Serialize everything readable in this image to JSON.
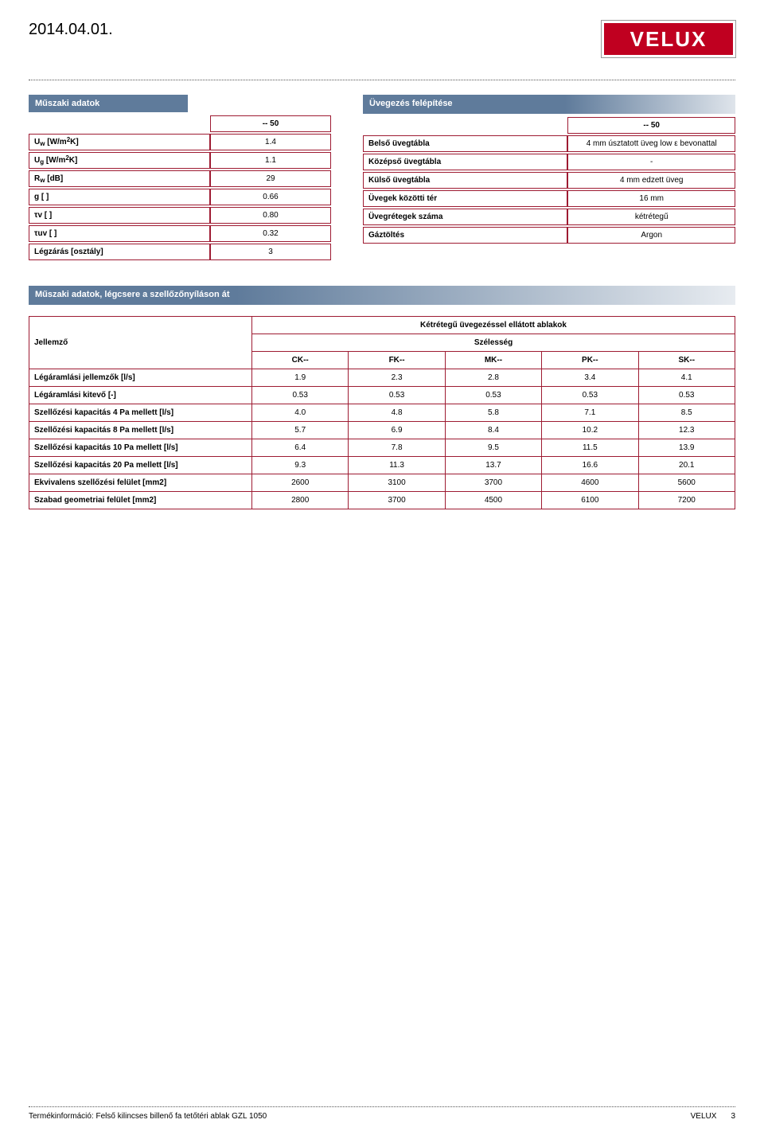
{
  "header": {
    "date": "2014.04.01.",
    "logo_text": "VELUX"
  },
  "colors": {
    "brand_red": "#c00020",
    "section_blue": "#5f7b9b",
    "border_red": "#9e1b32"
  },
  "sections": {
    "tech_data_title": "Műszaki adatok",
    "glazing_title": "Üvegezés felépítése"
  },
  "tech_table": {
    "col_header": "-- 50",
    "rows": [
      {
        "label_html": "U<sub>w</sub> [W/m<sup>2</sup>K]",
        "value": "1.4"
      },
      {
        "label_html": "U<sub>g</sub> [W/m<sup>2</sup>K]",
        "value": "1.1"
      },
      {
        "label_html": "R<sub>w</sub> [dB]",
        "value": "29"
      },
      {
        "label_html": "g [ ]",
        "value": "0.66"
      },
      {
        "label_html": "τv [ ]",
        "value": "0.80"
      },
      {
        "label_html": "τuv [ ]",
        "value": "0.32"
      },
      {
        "label_html": "Légzárás [osztály]",
        "value": "3"
      }
    ]
  },
  "glazing_table": {
    "col_header": "-- 50",
    "rows": [
      {
        "label": "Belső üvegtábla",
        "value": "4 mm úsztatott üveg low ε bevonattal"
      },
      {
        "label": "Középső üvegtábla",
        "value": "-"
      },
      {
        "label": "Külső üvegtábla",
        "value": "4 mm edzett üveg"
      },
      {
        "label": "Üvegek közötti tér",
        "value": "16 mm"
      },
      {
        "label": "Üvegrétegek száma",
        "value": "kétrétegű"
      },
      {
        "label": "Gáztöltés",
        "value": "Argon"
      }
    ]
  },
  "air_section": {
    "title": "Műszaki adatok, légcsere a szellőzőnyíláson át",
    "super_header": "Kétrétegű üvegezéssel ellátott ablakok",
    "row_header": "Jellemző",
    "width_header": "Szélesség",
    "columns": [
      "CK--",
      "FK--",
      "MK--",
      "PK--",
      "SK--"
    ],
    "rows": [
      {
        "label": "Légáramlási jellemzők [l/s]",
        "values": [
          "1.9",
          "2.3",
          "2.8",
          "3.4",
          "4.1"
        ]
      },
      {
        "label": "Légáramlási kitevő [-]",
        "values": [
          "0.53",
          "0.53",
          "0.53",
          "0.53",
          "0.53"
        ]
      },
      {
        "label": "Szellőzési kapacitás 4 Pa mellett [l/s]",
        "values": [
          "4.0",
          "4.8",
          "5.8",
          "7.1",
          "8.5"
        ]
      },
      {
        "label": "Szellőzési kapacitás 8 Pa mellett [l/s]",
        "values": [
          "5.7",
          "6.9",
          "8.4",
          "10.2",
          "12.3"
        ]
      },
      {
        "label": "Szellőzési kapacitás 10 Pa mellett [l/s]",
        "values": [
          "6.4",
          "7.8",
          "9.5",
          "11.5",
          "13.9"
        ]
      },
      {
        "label": "Szellőzési kapacitás 20 Pa mellett [l/s]",
        "values": [
          "9.3",
          "11.3",
          "13.7",
          "16.6",
          "20.1"
        ]
      },
      {
        "label": "Ekvivalens szellőzési felület [mm2]",
        "values": [
          "2600",
          "3100",
          "3700",
          "4600",
          "5600"
        ]
      },
      {
        "label": "Szabad geometriai felület [mm2]",
        "values": [
          "2800",
          "3700",
          "4500",
          "6100",
          "7200"
        ]
      }
    ]
  },
  "footer": {
    "left": "Termékinformáció: Felső kilincses billenő fa tetőtéri ablak GZL 1050",
    "brand": "VELUX",
    "page": "3"
  }
}
